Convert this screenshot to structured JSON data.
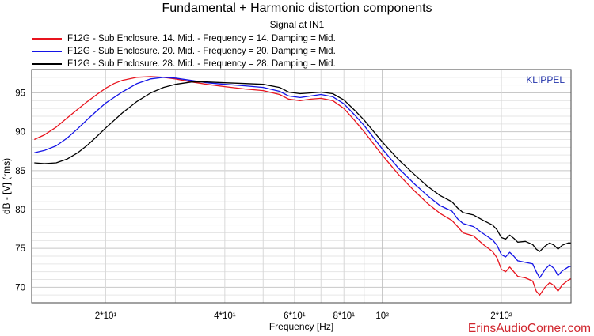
{
  "chart_data": {
    "type": "line",
    "title": "Fundamental + Harmonic distortion components",
    "subtitle": "Signal at IN1",
    "xlabel": "Frequency [Hz]",
    "ylabel": "dB - [V]  (rms)",
    "x_scale": "log",
    "xlim": [
      13,
      300
    ],
    "ylim": [
      68,
      98
    ],
    "grid": true,
    "legend_position": "top-left",
    "y_ticks": [
      70,
      75,
      80,
      85,
      90,
      95
    ],
    "x_ticks": [
      {
        "value": 20,
        "label": "2*10¹"
      },
      {
        "value": 40,
        "label": "4*10¹"
      },
      {
        "value": 60,
        "label": "6*10¹"
      },
      {
        "value": 80,
        "label": "8*10¹"
      },
      {
        "value": 100,
        "label": "10²"
      },
      {
        "value": 200,
        "label": "2*10²"
      }
    ],
    "series": [
      {
        "name": "F12G - Sub Enclosure. 14. Mid. - Frequency = 14.  Damping = Mid.",
        "color": "#e8141e",
        "points": [
          [
            13.2,
            89.0
          ],
          [
            14,
            89.6
          ],
          [
            15,
            90.6
          ],
          [
            16,
            91.8
          ],
          [
            17,
            92.9
          ],
          [
            18,
            93.9
          ],
          [
            19,
            94.8
          ],
          [
            20,
            95.6
          ],
          [
            21,
            96.2
          ],
          [
            22,
            96.6
          ],
          [
            24,
            97.0
          ],
          [
            26,
            97.1
          ],
          [
            28,
            97.0
          ],
          [
            30,
            96.8
          ],
          [
            33,
            96.4
          ],
          [
            36,
            96.1
          ],
          [
            40,
            95.8
          ],
          [
            45,
            95.5
          ],
          [
            50,
            95.3
          ],
          [
            55,
            94.8
          ],
          [
            58,
            94.2
          ],
          [
            62,
            94.0
          ],
          [
            66,
            94.2
          ],
          [
            70,
            94.3
          ],
          [
            75,
            94.0
          ],
          [
            80,
            93.0
          ],
          [
            85,
            91.5
          ],
          [
            90,
            90.0
          ],
          [
            100,
            87.0
          ],
          [
            110,
            84.5
          ],
          [
            120,
            82.5
          ],
          [
            130,
            80.8
          ],
          [
            140,
            79.5
          ],
          [
            150,
            78.6
          ],
          [
            155,
            77.8
          ],
          [
            160,
            77.0
          ],
          [
            170,
            76.6
          ],
          [
            180,
            75.5
          ],
          [
            190,
            74.6
          ],
          [
            195,
            73.8
          ],
          [
            200,
            72.3
          ],
          [
            205,
            72.0
          ],
          [
            210,
            72.6
          ],
          [
            215,
            72.0
          ],
          [
            220,
            71.4
          ],
          [
            230,
            71.2
          ],
          [
            240,
            70.8
          ],
          [
            245,
            69.5
          ],
          [
            250,
            69.0
          ],
          [
            258,
            70.0
          ],
          [
            265,
            70.6
          ],
          [
            272,
            70.2
          ],
          [
            278,
            69.5
          ],
          [
            285,
            70.3
          ],
          [
            295,
            70.9
          ],
          [
            300,
            71.1
          ]
        ]
      },
      {
        "name": "F12G - Sub Enclosure. 20. Mid. - Frequency = 20.  Damping = Mid.",
        "color": "#1414e6",
        "points": [
          [
            13.2,
            87.3
          ],
          [
            14,
            87.6
          ],
          [
            15,
            88.2
          ],
          [
            16,
            89.2
          ],
          [
            17,
            90.4
          ],
          [
            18,
            91.6
          ],
          [
            19,
            92.7
          ],
          [
            20,
            93.7
          ],
          [
            22,
            95.1
          ],
          [
            24,
            96.2
          ],
          [
            26,
            96.8
          ],
          [
            28,
            97.0
          ],
          [
            30,
            96.9
          ],
          [
            33,
            96.6
          ],
          [
            36,
            96.3
          ],
          [
            40,
            96.1
          ],
          [
            45,
            95.9
          ],
          [
            50,
            95.7
          ],
          [
            55,
            95.2
          ],
          [
            58,
            94.6
          ],
          [
            62,
            94.4
          ],
          [
            66,
            94.6
          ],
          [
            70,
            94.8
          ],
          [
            75,
            94.5
          ],
          [
            80,
            93.6
          ],
          [
            85,
            92.2
          ],
          [
            90,
            90.8
          ],
          [
            100,
            87.8
          ],
          [
            110,
            85.3
          ],
          [
            120,
            83.4
          ],
          [
            130,
            81.8
          ],
          [
            140,
            80.5
          ],
          [
            150,
            79.8
          ],
          [
            155,
            78.8
          ],
          [
            160,
            78.2
          ],
          [
            170,
            77.8
          ],
          [
            180,
            76.9
          ],
          [
            190,
            76.1
          ],
          [
            195,
            75.4
          ],
          [
            200,
            74.2
          ],
          [
            205,
            73.9
          ],
          [
            210,
            74.5
          ],
          [
            215,
            74.0
          ],
          [
            220,
            73.4
          ],
          [
            230,
            73.2
          ],
          [
            240,
            73.0
          ],
          [
            245,
            72.0
          ],
          [
            250,
            71.2
          ],
          [
            258,
            72.3
          ],
          [
            265,
            72.9
          ],
          [
            272,
            72.4
          ],
          [
            278,
            71.5
          ],
          [
            285,
            72.1
          ],
          [
            295,
            72.6
          ],
          [
            300,
            72.7
          ]
        ]
      },
      {
        "name": "F12G - Sub Enclosure. 28. Mid. - Frequency = 28.  Damping = Mid.",
        "color": "#000000",
        "points": [
          [
            13.2,
            86.0
          ],
          [
            14,
            85.9
          ],
          [
            15,
            86.0
          ],
          [
            16,
            86.5
          ],
          [
            17,
            87.3
          ],
          [
            18,
            88.3
          ],
          [
            19,
            89.4
          ],
          [
            20,
            90.5
          ],
          [
            22,
            92.4
          ],
          [
            24,
            93.9
          ],
          [
            26,
            95.0
          ],
          [
            28,
            95.7
          ],
          [
            30,
            96.1
          ],
          [
            33,
            96.4
          ],
          [
            36,
            96.4
          ],
          [
            40,
            96.3
          ],
          [
            45,
            96.2
          ],
          [
            50,
            96.1
          ],
          [
            55,
            95.7
          ],
          [
            58,
            95.1
          ],
          [
            62,
            94.9
          ],
          [
            66,
            95.0
          ],
          [
            70,
            95.1
          ],
          [
            75,
            94.9
          ],
          [
            80,
            94.1
          ],
          [
            85,
            92.8
          ],
          [
            90,
            91.5
          ],
          [
            100,
            88.7
          ],
          [
            110,
            86.4
          ],
          [
            120,
            84.6
          ],
          [
            130,
            83.0
          ],
          [
            140,
            81.8
          ],
          [
            150,
            81.0
          ],
          [
            155,
            80.2
          ],
          [
            160,
            79.6
          ],
          [
            170,
            79.3
          ],
          [
            180,
            78.6
          ],
          [
            190,
            78.0
          ],
          [
            195,
            77.4
          ],
          [
            200,
            76.4
          ],
          [
            205,
            76.2
          ],
          [
            210,
            76.7
          ],
          [
            215,
            76.3
          ],
          [
            220,
            75.8
          ],
          [
            230,
            75.9
          ],
          [
            240,
            75.5
          ],
          [
            245,
            74.9
          ],
          [
            250,
            74.6
          ],
          [
            258,
            75.3
          ],
          [
            265,
            75.7
          ],
          [
            272,
            75.4
          ],
          [
            278,
            74.9
          ],
          [
            285,
            75.4
          ],
          [
            295,
            75.7
          ],
          [
            300,
            75.7
          ]
        ]
      }
    ]
  },
  "labels": {
    "brand": "KLIPPEL",
    "watermark": "ErinsAudioCorner.com"
  },
  "colors": {
    "brand": "#2233aa",
    "watermark": "#d0262e"
  }
}
